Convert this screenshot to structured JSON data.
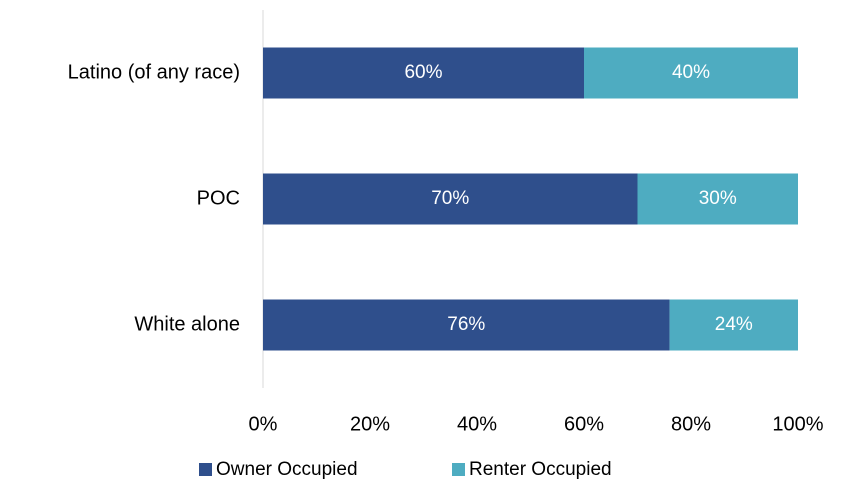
{
  "chart_data": {
    "type": "stacked_barh",
    "categories": [
      "Latino (of any race)",
      "POC",
      "White alone"
    ],
    "series": [
      {
        "name": "Owner Occupied",
        "color": "#2f4f8c",
        "values": [
          60,
          70,
          76
        ],
        "value_labels": [
          "60%",
          "70%",
          "76%"
        ]
      },
      {
        "name": "Renter Occupied",
        "color": "#4eacc1",
        "values": [
          40,
          30,
          24
        ],
        "value_labels": [
          "40%",
          "30%",
          "24%"
        ]
      }
    ],
    "xlim": [
      0,
      100
    ],
    "xticks": [
      {
        "value": 0,
        "label": "0%"
      },
      {
        "value": 20,
        "label": "20%"
      },
      {
        "value": 40,
        "label": "40%"
      },
      {
        "value": 60,
        "label": "60%"
      },
      {
        "value": 80,
        "label": "80%"
      },
      {
        "value": 100,
        "label": "100%"
      }
    ],
    "legend": "bottom"
  }
}
